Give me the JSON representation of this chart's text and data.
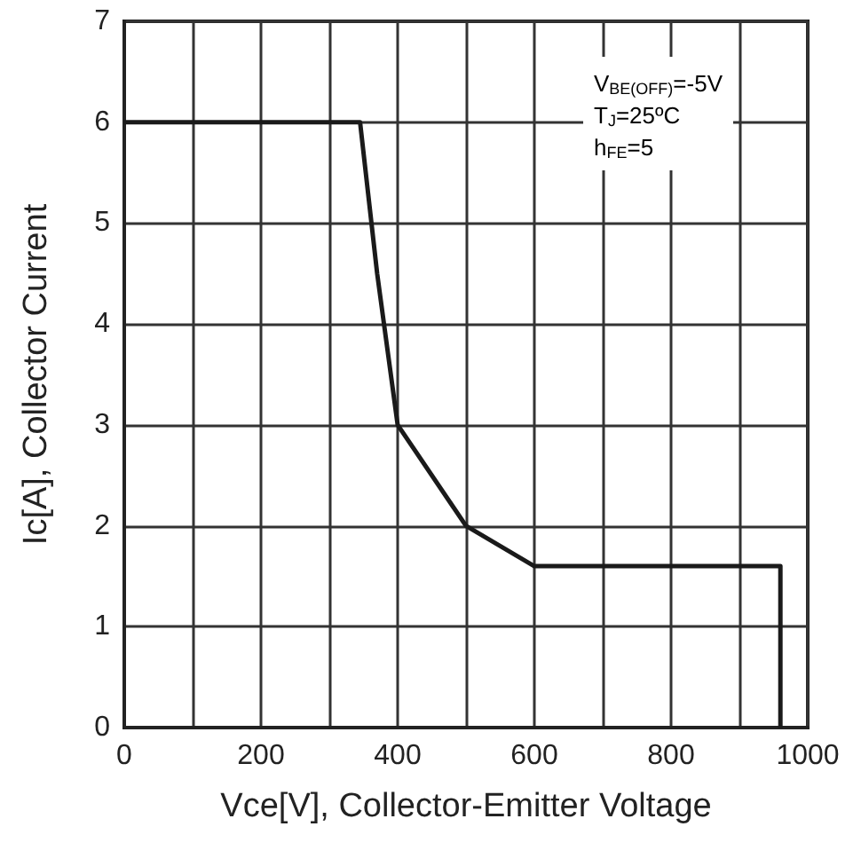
{
  "chart_data": {
    "type": "line",
    "xlabel": "Vce[V], Collector-Emitter Voltage",
    "ylabel": "Ic[A], Collector Current",
    "x": [
      0,
      345,
      370,
      400,
      500,
      600,
      960,
      960
    ],
    "series": [
      {
        "color": "#1a1a1a",
        "values": [
          6,
          6,
          4.5,
          3,
          2,
          1.6,
          1.6,
          0
        ]
      }
    ],
    "xlim": [
      0,
      1000
    ],
    "xticks": [
      0,
      {
        "value": 100,
        "label": null
      },
      200,
      {
        "value": 300,
        "label": null
      },
      400,
      {
        "value": 500,
        "label": null
      },
      600,
      {
        "value": 700,
        "label": null
      },
      800,
      {
        "value": 900,
        "label": null
      },
      1000
    ],
    "ylim": [
      0,
      7
    ],
    "yticks": [
      0,
      1,
      2,
      3,
      4,
      5,
      6,
      7
    ],
    "grid": true,
    "marker": "none",
    "line_style": "solid",
    "annotations": [
      "V$_{BE(OFF)}$=-5V",
      "T$_{J}$=25ºC",
      "h$_{FE}$=5"
    ]
  }
}
